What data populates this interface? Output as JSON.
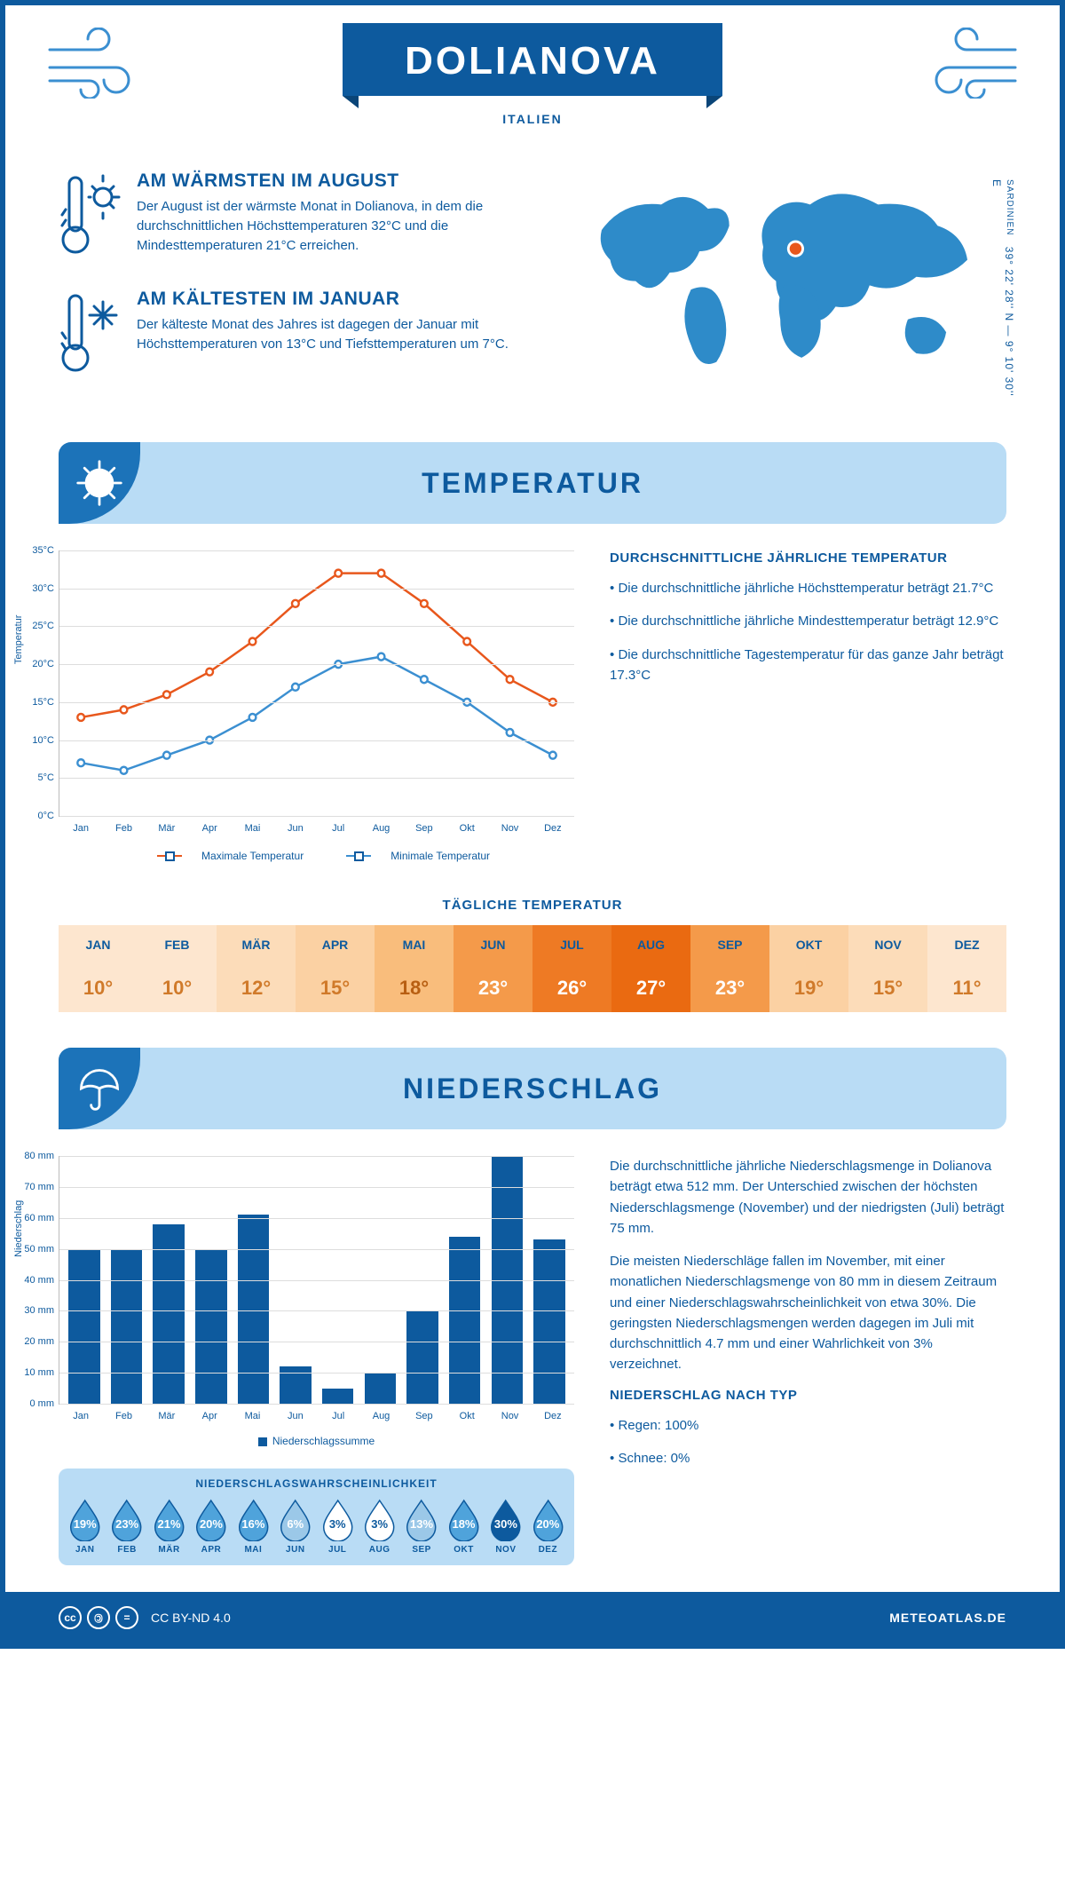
{
  "header": {
    "city": "DOLIANOVA",
    "country": "ITALIEN",
    "coords": "39° 22' 28'' N — 9° 10' 30'' E",
    "region": "SARDINIEN"
  },
  "facts": {
    "warm_title": "AM WÄRMSTEN IM AUGUST",
    "warm_text": "Der August ist der wärmste Monat in Dolianova, in dem die durchschnittlichen Höchsttemperaturen 32°C und die Mindesttemperaturen 21°C erreichen.",
    "cold_title": "AM KÄLTESTEN IM JANUAR",
    "cold_text": "Der kälteste Monat des Jahres ist dagegen der Januar mit Höchsttemperaturen von 13°C und Tiefsttemperaturen um 7°C."
  },
  "sections": {
    "temp": "TEMPERATUR",
    "precip": "NIEDERSCHLAG"
  },
  "temp_chart": {
    "ylabel": "Temperatur",
    "ymin": 0,
    "ymax": 35,
    "ystep": 5,
    "yunit": "°C",
    "months": [
      "Jan",
      "Feb",
      "Mär",
      "Apr",
      "Mai",
      "Jun",
      "Jul",
      "Aug",
      "Sep",
      "Okt",
      "Nov",
      "Dez"
    ],
    "max": {
      "label": "Maximale Temperatur",
      "color": "#e8571c",
      "values": [
        13,
        14,
        16,
        19,
        23,
        28,
        32,
        32,
        28,
        23,
        18,
        15
      ]
    },
    "min": {
      "label": "Minimale Temperatur",
      "color": "#3b8fd1",
      "values": [
        7,
        6,
        8,
        10,
        13,
        17,
        20,
        21,
        18,
        15,
        11,
        8
      ]
    }
  },
  "temp_side": {
    "heading": "DURCHSCHNITTLICHE JÄHRLICHE TEMPERATUR",
    "b1": "• Die durchschnittliche jährliche Höchsttemperatur beträgt 21.7°C",
    "b2": "• Die durchschnittliche jährliche Mindesttemperatur beträgt 12.9°C",
    "b3": "• Die durchschnittliche Tagestemperatur für das ganze Jahr beträgt 17.3°C"
  },
  "daily": {
    "title": "TÄGLICHE TEMPERATUR",
    "months": [
      "JAN",
      "FEB",
      "MÄR",
      "APR",
      "MAI",
      "JUN",
      "JUL",
      "AUG",
      "SEP",
      "OKT",
      "NOV",
      "DEZ"
    ],
    "values": [
      "10°",
      "10°",
      "12°",
      "15°",
      "18°",
      "23°",
      "26°",
      "27°",
      "23°",
      "19°",
      "15°",
      "11°"
    ],
    "bg": [
      "#fde6cf",
      "#fde6cf",
      "#fcdcb9",
      "#fbd1a3",
      "#f9bd7c",
      "#f49a4a",
      "#ee7a24",
      "#ea6a11",
      "#f49a4a",
      "#fbd1a3",
      "#fcdcb9",
      "#fde6cf"
    ],
    "fg": [
      "#d07a2a",
      "#d07a2a",
      "#d07a2a",
      "#d07a2a",
      "#b85f12",
      "#fff",
      "#fff",
      "#fff",
      "#fff",
      "#d07a2a",
      "#d07a2a",
      "#d07a2a"
    ]
  },
  "precip_chart": {
    "ylabel": "Niederschlag",
    "ymin": 0,
    "ymax": 80,
    "ystep": 10,
    "yunit": " mm",
    "months": [
      "Jan",
      "Feb",
      "Mär",
      "Apr",
      "Mai",
      "Jun",
      "Jul",
      "Aug",
      "Sep",
      "Okt",
      "Nov",
      "Dez"
    ],
    "values": [
      50,
      50,
      58,
      50,
      61,
      12,
      5,
      10,
      30,
      54,
      80,
      53
    ],
    "bar_color": "#0d5a9e",
    "legend": "Niederschlagssumme"
  },
  "precip_side": {
    "p1": "Die durchschnittliche jährliche Niederschlagsmenge in Dolianova beträgt etwa 512 mm. Der Unterschied zwischen der höchsten Niederschlagsmenge (November) und der niedrigsten (Juli) beträgt 75 mm.",
    "p2": "Die meisten Niederschläge fallen im November, mit einer monatlichen Niederschlagsmenge von 80 mm in diesem Zeitraum und einer Niederschlagswahrscheinlichkeit von etwa 30%. Die geringsten Niederschlagsmengen werden dagegen im Juli mit durchschnittlich 4.7 mm und einer Wahrlichkeit von 3% verzeichnet.",
    "type_h": "NIEDERSCHLAG NACH TYP",
    "type_1": "• Regen: 100%",
    "type_2": "• Schnee: 0%"
  },
  "prob": {
    "title": "NIEDERSCHLAGSWAHRSCHEINLICHKEIT",
    "months": [
      "JAN",
      "FEB",
      "MÄR",
      "APR",
      "MAI",
      "JUN",
      "JUL",
      "AUG",
      "SEP",
      "OKT",
      "NOV",
      "DEZ"
    ],
    "values": [
      "19%",
      "23%",
      "21%",
      "20%",
      "16%",
      "6%",
      "3%",
      "3%",
      "13%",
      "18%",
      "30%",
      "20%"
    ],
    "fill": [
      "#4fa3db",
      "#4fa3db",
      "#4fa3db",
      "#4fa3db",
      "#4fa3db",
      "#9bc8e8",
      "#ffffff",
      "#ffffff",
      "#9bc8e8",
      "#4fa3db",
      "#0d5a9e",
      "#4fa3db"
    ],
    "txt": [
      "#fff",
      "#fff",
      "#fff",
      "#fff",
      "#fff",
      "#fff",
      "#0d5a9e",
      "#0d5a9e",
      "#fff",
      "#fff",
      "#fff",
      "#fff"
    ]
  },
  "footer": {
    "license": "CC BY-ND 4.0",
    "site": "METEOATLAS.DE"
  }
}
